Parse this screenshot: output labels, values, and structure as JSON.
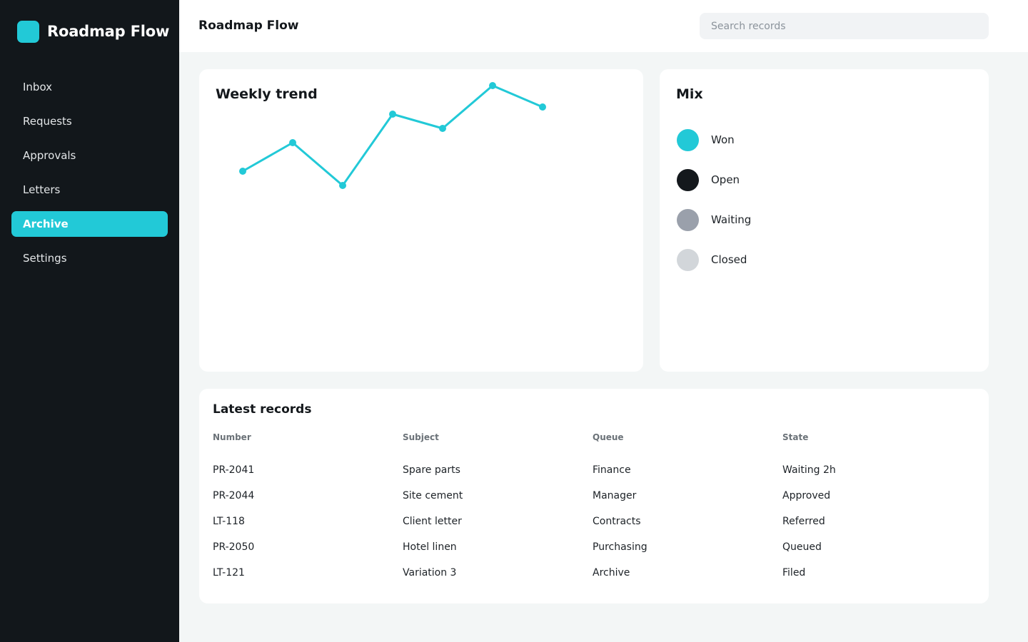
{
  "app": {
    "name": "Roadmap Flow",
    "accent": "#22c9d7"
  },
  "sidebar": {
    "items": [
      {
        "label": "Inbox",
        "active": false
      },
      {
        "label": "Requests",
        "active": false
      },
      {
        "label": "Approvals",
        "active": false
      },
      {
        "label": "Letters",
        "active": false
      },
      {
        "label": "Archive",
        "active": true
      },
      {
        "label": "Settings",
        "active": false
      }
    ]
  },
  "header": {
    "title": "Roadmap Flow",
    "search_placeholder": "Search records"
  },
  "trend": {
    "title": "Weekly trend",
    "color": "#22c9d7"
  },
  "chart_data": {
    "type": "line",
    "title": "Weekly trend",
    "x": [
      1,
      2,
      3,
      4,
      5,
      6,
      7
    ],
    "series": [
      {
        "values": [
          40,
          60,
          30,
          80,
          70,
          100,
          85
        ]
      }
    ],
    "ylim": [
      0,
      100
    ],
    "grid": false
  },
  "mix": {
    "title": "Mix",
    "items": [
      {
        "label": "Won",
        "color": "#22c9d7"
      },
      {
        "label": "Open",
        "color": "#14181c"
      },
      {
        "label": "Waiting",
        "color": "#9aa0ab"
      },
      {
        "label": "Closed",
        "color": "#d2d6da"
      }
    ]
  },
  "records": {
    "title": "Latest records",
    "columns": [
      "Number",
      "Subject",
      "Queue",
      "State"
    ],
    "rows": [
      [
        "PR-2041",
        "Spare parts",
        "Finance",
        "Waiting 2h"
      ],
      [
        "PR-2044",
        "Site cement",
        "Manager",
        "Approved"
      ],
      [
        "LT-118",
        "Client letter",
        "Contracts",
        "Referred"
      ],
      [
        "PR-2050",
        "Hotel linen",
        "Purchasing",
        "Queued"
      ],
      [
        "LT-121",
        "Variation 3",
        "Archive",
        "Filed"
      ]
    ]
  }
}
